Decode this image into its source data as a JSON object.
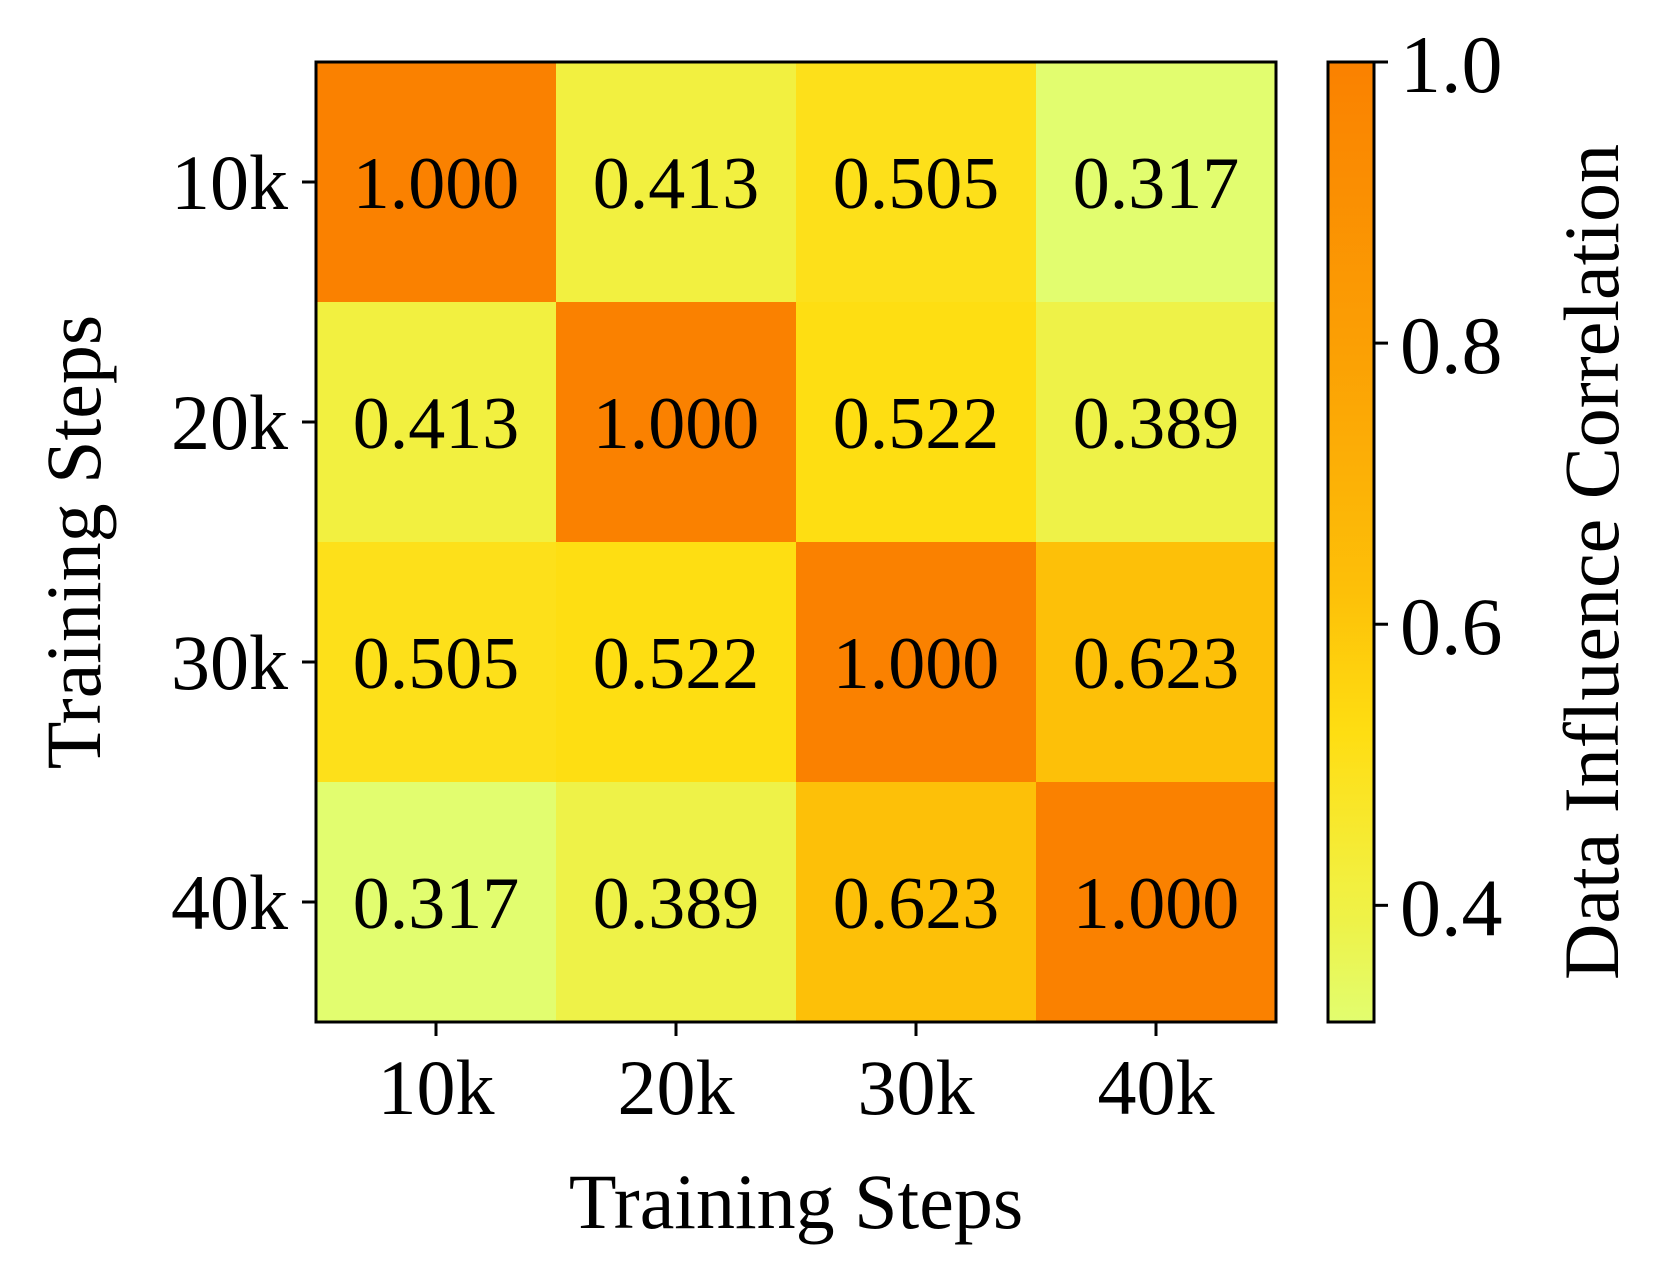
{
  "chart_data": {
    "type": "heatmap",
    "x_categories": [
      "10k",
      "20k",
      "30k",
      "40k"
    ],
    "y_categories": [
      "10k",
      "20k",
      "30k",
      "40k"
    ],
    "values": [
      [
        1.0,
        0.413,
        0.505,
        0.317
      ],
      [
        0.413,
        1.0,
        0.522,
        0.389
      ],
      [
        0.505,
        0.522,
        1.0,
        0.623
      ],
      [
        0.317,
        0.389,
        0.623,
        1.0
      ]
    ],
    "cell_labels": [
      [
        "1.000",
        "0.413",
        "0.505",
        "0.317"
      ],
      [
        "0.413",
        "1.000",
        "0.522",
        "0.389"
      ],
      [
        "0.505",
        "0.522",
        "1.000",
        "0.623"
      ],
      [
        "0.317",
        "0.389",
        "0.623",
        "1.000"
      ]
    ],
    "xlabel": "Training Steps",
    "ylabel": "Training Steps",
    "colorbar": {
      "label": "Data Influence Correlation",
      "range": [
        0.317,
        1.0
      ],
      "ticks": [
        0.4,
        0.6,
        0.8,
        1.0
      ],
      "tick_labels": [
        "0.4",
        "0.6",
        "0.8",
        "1.0"
      ]
    },
    "colormap": {
      "stops": [
        {
          "value": 0.317,
          "color": "#E2FD6F"
        },
        {
          "value": 0.389,
          "color": "#EEF248"
        },
        {
          "value": 0.413,
          "color": "#F2F040"
        },
        {
          "value": 0.505,
          "color": "#FDE01A"
        },
        {
          "value": 0.522,
          "color": "#FEDE12"
        },
        {
          "value": 0.623,
          "color": "#FDC008"
        },
        {
          "value": 0.8,
          "color": "#FB9F04"
        },
        {
          "value": 1.0,
          "color": "#FA8100"
        }
      ]
    },
    "grid": false
  }
}
